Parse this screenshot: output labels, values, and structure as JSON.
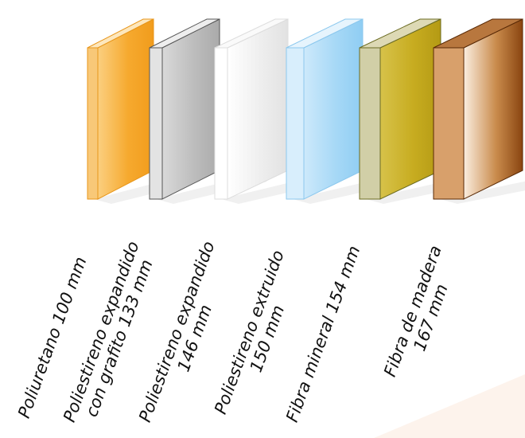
{
  "materials": [
    {
      "id": "poliuretano",
      "lines": [
        "Poliuretano 100 mm"
      ],
      "thickness_mm": 100,
      "colors": {
        "front_light": "#fbcf80",
        "front": "#f6a92e",
        "front_dark": "#f19c1c",
        "side": "#f8c878",
        "top": "#fde7bd",
        "edge": "#e8961a"
      }
    },
    {
      "id": "eps-grafito",
      "lines": [
        "Poliestireno expandido",
        "con grafito 133 mm"
      ],
      "thickness_mm": 133,
      "colors": {
        "front_light": "#d9d9d9",
        "front": "#bdbdbd",
        "front_dark": "#aaaaaa",
        "side": "#e3e3e3",
        "top": "#eeeeee",
        "edge": "#555555"
      }
    },
    {
      "id": "eps",
      "lines": [
        "Poliestireno expandido",
        "146 mm"
      ],
      "thickness_mm": 146,
      "colors": {
        "front_light": "#ffffff",
        "front": "#eeeeee",
        "front_dark": "#e2e2e2",
        "side": "#ffffff",
        "top": "#fafafa",
        "edge": "#dddddd"
      }
    },
    {
      "id": "xps",
      "lines": [
        "Poliestireno extruido",
        "150 mm"
      ],
      "thickness_mm": 150,
      "colors": {
        "front_light": "#cde9fb",
        "front": "#a6d8f6",
        "front_dark": "#8fcdf3",
        "side": "#d8eefc",
        "top": "#e6f4fd",
        "edge": "#8cc8ee"
      }
    },
    {
      "id": "fibra-mineral",
      "lines": [
        "Fibra mineral 154 mm"
      ],
      "thickness_mm": 154,
      "colors": {
        "front_light": "#d7c24a",
        "front": "#c7ac20",
        "front_dark": "#b49a14",
        "side": "#d1cfa7",
        "top": "#ddd9b5",
        "edge": "#6b6b22"
      }
    },
    {
      "id": "fibra-madera",
      "lines": [
        "Fibra de madera",
        "167 mm"
      ],
      "thickness_mm": 167,
      "colors": {
        "front_light": "#fbeee0",
        "front": "#c98b4c",
        "front_dark": "#8a4510",
        "side": "#d8a06b",
        "top": "#b8773e",
        "edge": "#5a2a06"
      }
    }
  ]
}
